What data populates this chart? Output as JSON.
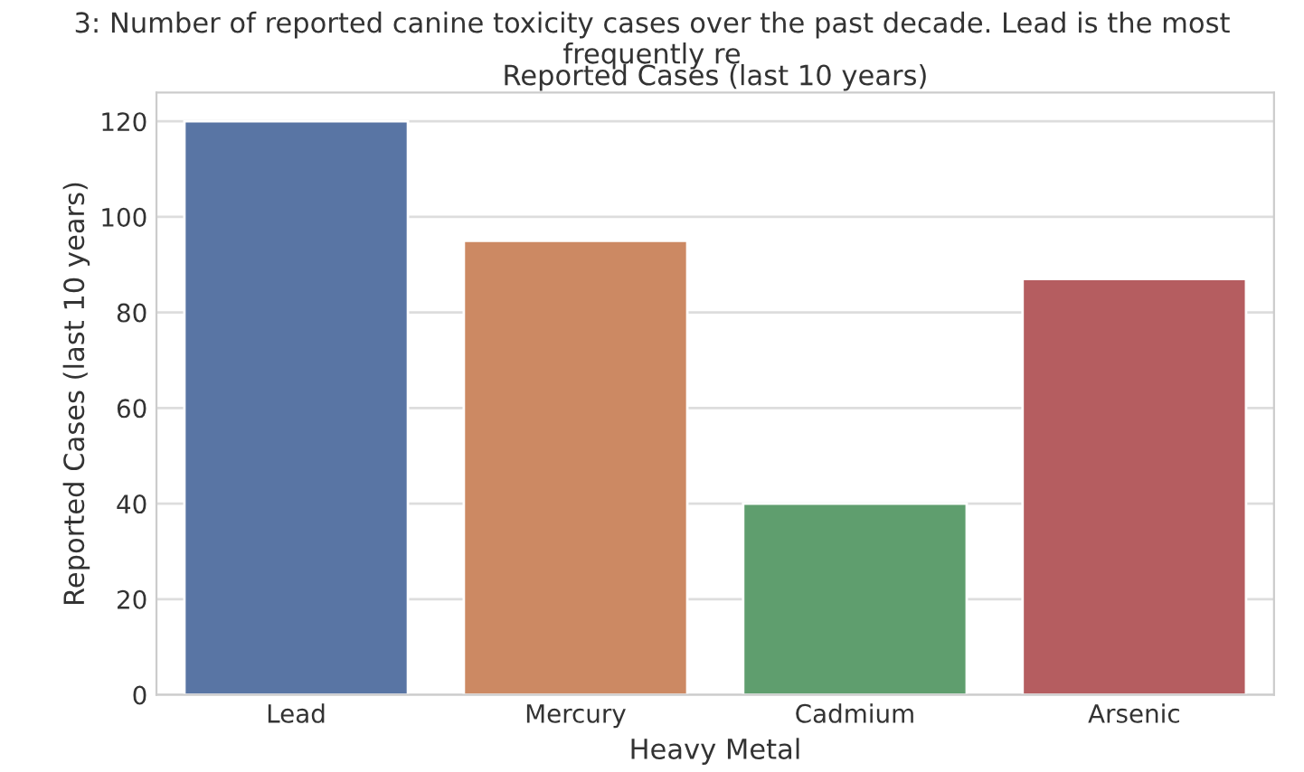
{
  "chart_data": {
    "type": "bar",
    "title": "Reported Cases (last 10 years)",
    "annotations": [
      "3: Number of reported canine toxicity cases over the past decade. Lead is the most frequently re"
    ],
    "xlabel": "Heavy Metal",
    "ylabel": "Reported Cases (last 10 years)",
    "categories": [
      "Lead",
      "Mercury",
      "Cadmium",
      "Arsenic"
    ],
    "values": [
      120,
      95,
      40,
      87
    ],
    "colors": [
      "#5975a4",
      "#cc8963",
      "#5f9e6e",
      "#b55d60"
    ],
    "ylim": [
      0,
      126
    ],
    "yticks": [
      0,
      20,
      40,
      60,
      80,
      100,
      120
    ],
    "grid": "y"
  }
}
